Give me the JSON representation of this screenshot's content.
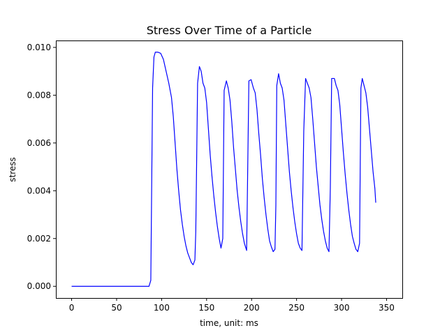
{
  "chart_data": {
    "type": "line",
    "title": "Stress Over Time of a Particle",
    "xlabel": "time, unit: ms",
    "ylabel": "stress",
    "xlim": [
      -17.5,
      367.5
    ],
    "ylim": [
      -0.00049,
      0.01029
    ],
    "grid": false,
    "legend": "none",
    "x_ticks": [
      {
        "value": 0,
        "label": "0"
      },
      {
        "value": 50,
        "label": "50"
      },
      {
        "value": 100,
        "label": "100"
      },
      {
        "value": 150,
        "label": "150"
      },
      {
        "value": 200,
        "label": "200"
      },
      {
        "value": 250,
        "label": "250"
      },
      {
        "value": 300,
        "label": "300"
      },
      {
        "value": 350,
        "label": "350"
      }
    ],
    "y_ticks": [
      {
        "value": 0,
        "label": "0.000"
      },
      {
        "value": 0.002,
        "label": "0.002"
      },
      {
        "value": 0.004,
        "label": "0.004"
      },
      {
        "value": 0.006,
        "label": "0.006"
      },
      {
        "value": 0.008,
        "label": "0.008"
      },
      {
        "value": 0.01,
        "label": "0.010"
      }
    ],
    "series": [
      {
        "color": "#0000ff",
        "points": [
          [
            0,
            0
          ],
          [
            86,
            0
          ],
          [
            88,
            0.00025
          ],
          [
            90,
            0.0083
          ],
          [
            91.5,
            0.0096
          ],
          [
            93,
            0.0098
          ],
          [
            96,
            0.0098
          ],
          [
            99,
            0.00975
          ],
          [
            102,
            0.0095
          ],
          [
            105,
            0.009
          ],
          [
            108,
            0.0085
          ],
          [
            111,
            0.0079
          ],
          [
            113,
            0.0071
          ],
          [
            115,
            0.006
          ],
          [
            117,
            0.0049
          ],
          [
            119,
            0.004
          ],
          [
            121,
            0.0032
          ],
          [
            123,
            0.0026
          ],
          [
            125,
            0.0021
          ],
          [
            127,
            0.0017
          ],
          [
            129,
            0.0014
          ],
          [
            131,
            0.0012
          ],
          [
            133,
            0.001
          ],
          [
            135,
            0.0009
          ],
          [
            137,
            0.0011
          ],
          [
            138,
            0.0023
          ],
          [
            140,
            0.0085
          ],
          [
            142,
            0.0092
          ],
          [
            144,
            0.009
          ],
          [
            146,
            0.0085
          ],
          [
            148,
            0.0083
          ],
          [
            150,
            0.0077
          ],
          [
            152,
            0.0066
          ],
          [
            154,
            0.0055
          ],
          [
            156,
            0.0046
          ],
          [
            158,
            0.0038
          ],
          [
            160,
            0.0031
          ],
          [
            162,
            0.0025
          ],
          [
            164,
            0.002
          ],
          [
            166,
            0.0016
          ],
          [
            168,
            0.002
          ],
          [
            169.5,
            0.0082
          ],
          [
            172,
            0.0086
          ],
          [
            174,
            0.0083
          ],
          [
            176,
            0.0078
          ],
          [
            178,
            0.0069
          ],
          [
            180,
            0.0058
          ],
          [
            182,
            0.0049
          ],
          [
            184,
            0.004
          ],
          [
            186,
            0.0033
          ],
          [
            188,
            0.0027
          ],
          [
            190,
            0.0022
          ],
          [
            192,
            0.0018
          ],
          [
            194.5,
            0.0015
          ],
          [
            197,
            0.0086
          ],
          [
            199.5,
            0.00865
          ],
          [
            202,
            0.0083
          ],
          [
            204,
            0.0081
          ],
          [
            206,
            0.0074
          ],
          [
            208,
            0.0064
          ],
          [
            210,
            0.0055
          ],
          [
            212,
            0.0045
          ],
          [
            214,
            0.0037
          ],
          [
            216,
            0.003
          ],
          [
            218,
            0.0024
          ],
          [
            220,
            0.0019
          ],
          [
            222,
            0.00165
          ],
          [
            224,
            0.00145
          ],
          [
            226,
            0.00155
          ],
          [
            227,
            0.0034
          ],
          [
            228,
            0.0084
          ],
          [
            230,
            0.0089
          ],
          [
            232,
            0.0085
          ],
          [
            234,
            0.0083
          ],
          [
            236,
            0.0078
          ],
          [
            238,
            0.0068
          ],
          [
            240,
            0.0058
          ],
          [
            242,
            0.0048
          ],
          [
            244,
            0.004
          ],
          [
            246,
            0.0033
          ],
          [
            248,
            0.0027
          ],
          [
            250,
            0.0022
          ],
          [
            252,
            0.0018
          ],
          [
            254,
            0.0016
          ],
          [
            256,
            0.0015
          ],
          [
            258,
            0.0065
          ],
          [
            260,
            0.0087
          ],
          [
            262,
            0.0085
          ],
          [
            264,
            0.0083
          ],
          [
            266,
            0.0079
          ],
          [
            268,
            0.007
          ],
          [
            270,
            0.006
          ],
          [
            272,
            0.005
          ],
          [
            274,
            0.0042
          ],
          [
            276,
            0.0034
          ],
          [
            278,
            0.0028
          ],
          [
            280,
            0.0023
          ],
          [
            282,
            0.0019
          ],
          [
            284,
            0.0016
          ],
          [
            286,
            0.00145
          ],
          [
            287.5,
            0.0041
          ],
          [
            289,
            0.0087
          ],
          [
            292,
            0.0087
          ],
          [
            294,
            0.0084
          ],
          [
            296,
            0.0082
          ],
          [
            298,
            0.0076
          ],
          [
            300,
            0.0066
          ],
          [
            302,
            0.0056
          ],
          [
            304,
            0.0047
          ],
          [
            306,
            0.0039
          ],
          [
            308,
            0.0032
          ],
          [
            310,
            0.0026
          ],
          [
            312,
            0.0021
          ],
          [
            314,
            0.0018
          ],
          [
            316,
            0.00155
          ],
          [
            318,
            0.00145
          ],
          [
            320,
            0.0018
          ],
          [
            321.5,
            0.0083
          ],
          [
            323,
            0.0087
          ],
          [
            325,
            0.0084
          ],
          [
            327,
            0.0081
          ],
          [
            329,
            0.0075
          ],
          [
            331,
            0.0066
          ],
          [
            333,
            0.0057
          ],
          [
            335,
            0.0048
          ],
          [
            337,
            0.0041
          ],
          [
            338,
            0.0035
          ]
        ]
      }
    ]
  }
}
